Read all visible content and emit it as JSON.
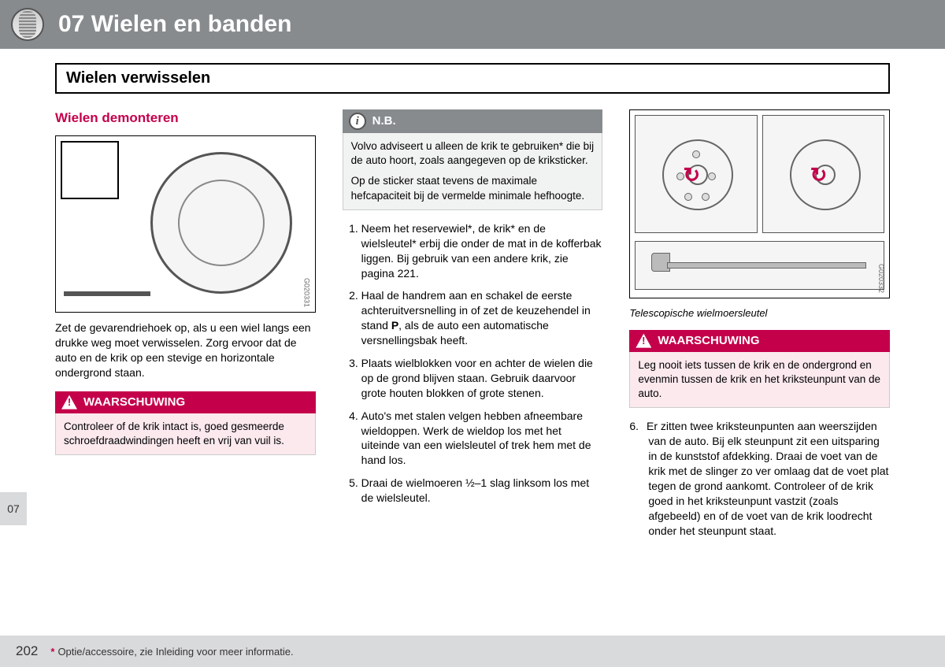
{
  "header": {
    "chapter": "07 Wielen en banden"
  },
  "section_title": "Wielen verwisselen",
  "col1": {
    "heading": "Wielen demonteren",
    "fig_code": "G020331",
    "para1": "Zet de gevarendriehoek op, als u een wiel langs een drukke weg moet verwisselen. Zorg ervoor dat de auto en de krik op een stevige en horizontale ondergrond staan.",
    "warn_title": "WAARSCHUWING",
    "warn_body": "Controleer of de krik intact is, goed gesmeerde schroefdraadwindingen heeft en vrij van vuil is."
  },
  "col2": {
    "note_title": "N.B.",
    "note_p1": "Volvo adviseert u alleen de krik te gebruiken* die bij de auto hoort, zoals aangegeven op de kriksticker.",
    "note_p2": "Op de sticker staat tevens de maximale hefcapaciteit bij de vermelde minimale hefhoogte.",
    "steps": [
      "Neem het reservewiel*, de krik* en de wielsleutel* erbij die onder de mat in de kofferbak liggen. Bij gebruik van een andere krik, zie pagina 221.",
      "Haal de handrem aan en schakel de eerste achteruitversnelling in of zet de keuzehendel in stand P, als de auto een automatische versnellingsbak heeft.",
      "Plaats wielblokken voor en achter de wielen die op de grond blijven staan. Gebruik daarvoor grote houten blokken of grote stenen.",
      "Auto's met stalen velgen hebben afneembare wieldoppen. Werk de wieldop los met het uiteinde van een wielsleutel of trek hem met de hand los.",
      "Draai de wielmoeren ½–1 slag linksom los met de wielsleutel."
    ]
  },
  "col3": {
    "fig_code": "G020332",
    "caption": "Telescopische wielmoersleutel",
    "warn_title": "WAARSCHUWING",
    "warn_body": "Leg nooit iets tussen de krik en de ondergrond en evenmin tussen de krik en het kriksteunpunt van de auto.",
    "step6": "Er zitten twee kriksteunpunten aan weerszijden van de auto. Bij elk steunpunt zit een uitsparing in de kunststof afdekking. Draai de voet van de krik met de slinger zo ver omlaag dat de voet plat tegen de grond aankomt. Controleer of de krik goed in het kriksteunpunt vastzit (zoals afgebeeld) en of de voet van de krik loodrecht onder het steunpunt staat."
  },
  "side_tab": "07",
  "footer": {
    "page": "202",
    "note": "Optie/accessoire, zie Inleiding voor meer informatie."
  }
}
